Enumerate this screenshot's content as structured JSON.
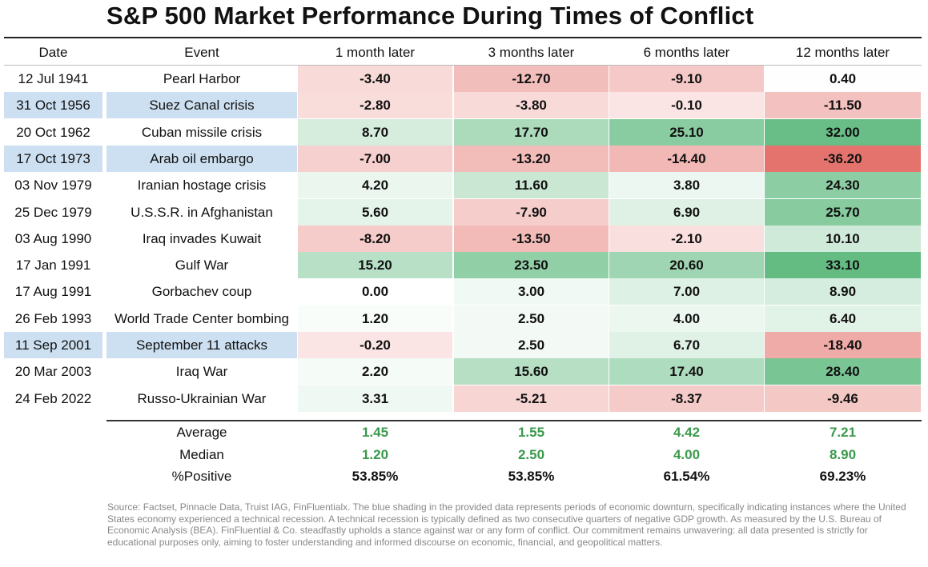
{
  "title": "S&P 500 Market Performance During Times of Conflict",
  "headers": [
    "Date",
    "Event",
    "1 month later",
    "3 months later",
    "6 months later",
    "12 months later"
  ],
  "chart_data": {
    "type": "table",
    "title": "S&P 500 Market Performance During Times of Conflict",
    "columns": [
      "Date",
      "Event",
      "1 month later",
      "3 months later",
      "6 months later",
      "12 months later"
    ],
    "rows": [
      {
        "date": "12 Jul 1941",
        "event": "Pearl Harbor",
        "recession": false,
        "values": [
          "-3.40",
          "-12.70",
          "-9.10",
          "0.40"
        ]
      },
      {
        "date": "31 Oct 1956",
        "event": "Suez Canal crisis",
        "recession": true,
        "values": [
          "-2.80",
          "-3.80",
          "-0.10",
          "-11.50"
        ]
      },
      {
        "date": "20 Oct 1962",
        "event": "Cuban missile crisis",
        "recession": false,
        "values": [
          "8.70",
          "17.70",
          "25.10",
          "32.00"
        ]
      },
      {
        "date": "17 Oct 1973",
        "event": "Arab oil embargo",
        "recession": true,
        "values": [
          "-7.00",
          "-13.20",
          "-14.40",
          "-36.20"
        ]
      },
      {
        "date": "03 Nov 1979",
        "event": "Iranian hostage crisis",
        "recession": false,
        "values": [
          "4.20",
          "11.60",
          "3.80",
          "24.30"
        ]
      },
      {
        "date": "25 Dec 1979",
        "event": "U.S.S.R. in Afghanistan",
        "recession": false,
        "values": [
          "5.60",
          "-7.90",
          "6.90",
          "25.70"
        ]
      },
      {
        "date": "03 Aug 1990",
        "event": "Iraq invades Kuwait",
        "recession": false,
        "values": [
          "-8.20",
          "-13.50",
          "-2.10",
          "10.10"
        ]
      },
      {
        "date": "17 Jan 1991",
        "event": "Gulf War",
        "recession": false,
        "values": [
          "15.20",
          "23.50",
          "20.60",
          "33.10"
        ]
      },
      {
        "date": "17 Aug 1991",
        "event": "Gorbachev coup",
        "recession": false,
        "values": [
          "0.00",
          "3.00",
          "7.00",
          "8.90"
        ]
      },
      {
        "date": "26 Feb 1993",
        "event": "World Trade Center bombing",
        "recession": false,
        "values": [
          "1.20",
          "2.50",
          "4.00",
          "6.40"
        ]
      },
      {
        "date": "11 Sep 2001",
        "event": "September 11 attacks",
        "recession": true,
        "values": [
          "-0.20",
          "2.50",
          "6.70",
          "-18.40"
        ]
      },
      {
        "date": "20 Mar 2003",
        "event": "Iraq War",
        "recession": false,
        "values": [
          "2.20",
          "15.60",
          "17.40",
          "28.40"
        ]
      },
      {
        "date": "24 Feb 2022",
        "event": "Russo-Ukrainian War",
        "recession": false,
        "values": [
          "3.31",
          "-5.21",
          "-8.37",
          "-9.46"
        ]
      }
    ],
    "summary": [
      {
        "label": "Average",
        "values": [
          "1.45",
          "1.55",
          "4.42",
          "7.21"
        ],
        "color": "#3a9a4c"
      },
      {
        "label": "Median",
        "values": [
          "1.20",
          "2.50",
          "4.00",
          "8.90"
        ],
        "color": "#3a9a4c"
      },
      {
        "label": "%Positive",
        "values": [
          "53.85%",
          "53.85%",
          "61.54%",
          "69.23%"
        ],
        "color": "#111111"
      }
    ]
  },
  "colors": {
    "recession_highlight": "#cde0f1",
    "positive_max": "#5cb87c",
    "negative_max": "#e4736d",
    "summary_green": "#3a9a4c"
  },
  "footnote": "Source: Factset, Pinnacle Data, Truist IAG, FinFluentialx. The blue shading in the provided data represents periods of economic downturn, specifically indicating instances where the United States economy experienced a technical recession. A technical recession is typically defined as two consecutive quarters of negative GDP growth. As measured by the U.S. Bureau of Economic Analysis (BEA). FinFluential & Co. steadfastly upholds a stance against war or any form of conflict. Our commitment remains unwavering: all data presented is strictly for educational purposes only, aiming to foster understanding and informed discourse on economic, financial, and geopolitical matters."
}
